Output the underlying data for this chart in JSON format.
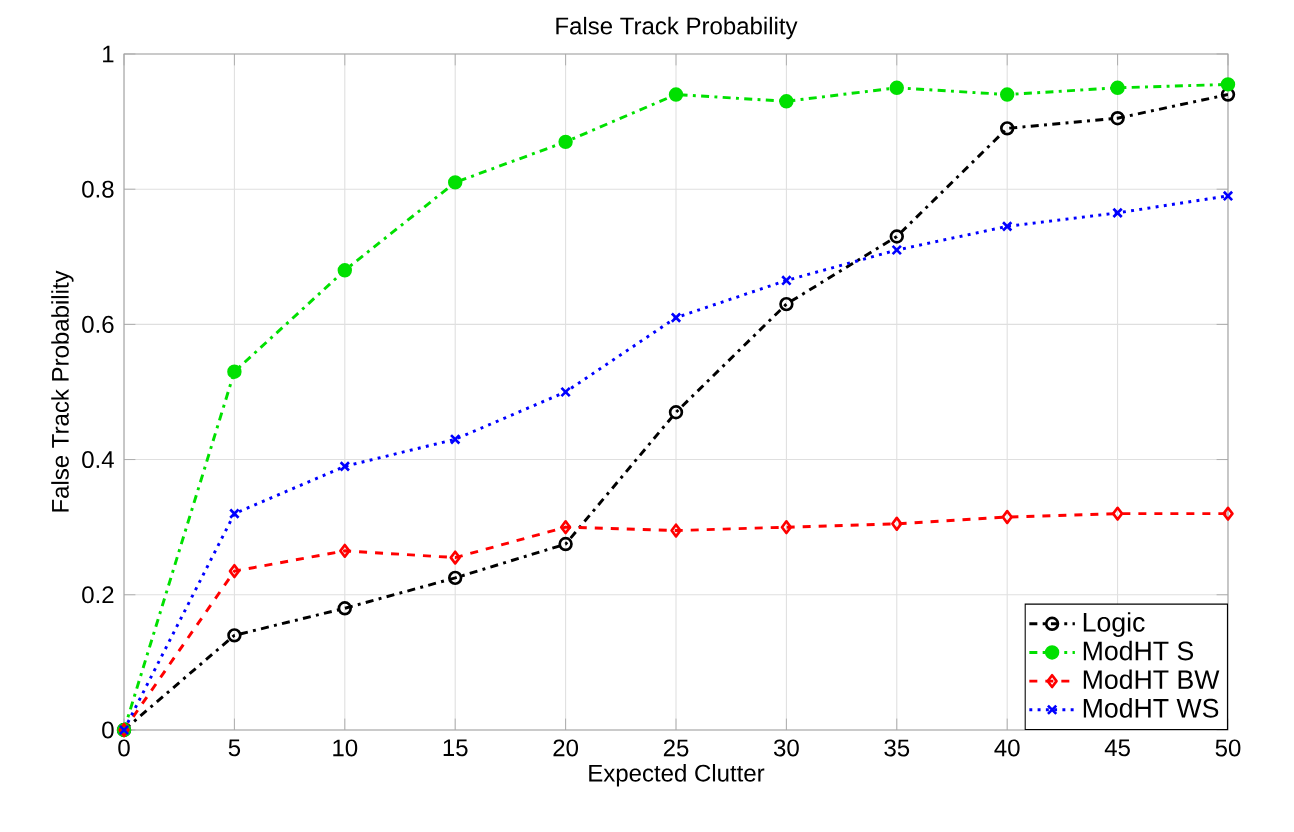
{
  "chart_data": {
    "type": "line",
    "title": "False Track Probability",
    "xlabel": "Expected Clutter",
    "ylabel": "False Track Probability",
    "x": [
      0,
      5,
      10,
      15,
      20,
      25,
      30,
      35,
      40,
      45,
      50
    ],
    "series": [
      {
        "name": "Logic",
        "color": "#000000",
        "marker": "circle",
        "line_style": "dashdot",
        "values": [
          0,
          0.14,
          0.18,
          0.225,
          0.275,
          0.47,
          0.63,
          0.73,
          0.89,
          0.905,
          0.94
        ]
      },
      {
        "name": "ModHT S",
        "color": "#00e000",
        "marker": "dot",
        "line_style": "dashdot",
        "values": [
          0,
          0.53,
          0.68,
          0.81,
          0.87,
          0.94,
          0.93,
          0.95,
          0.94,
          0.95,
          0.955
        ]
      },
      {
        "name": "ModHT BW",
        "color": "#ff0000",
        "marker": "diamond",
        "line_style": "dashed",
        "values": [
          0,
          0.235,
          0.265,
          0.255,
          0.3,
          0.295,
          0.3,
          0.305,
          0.315,
          0.32,
          0.32
        ]
      },
      {
        "name": "ModHT WS",
        "color": "#0000ff",
        "marker": "cross",
        "line_style": "dotted",
        "values": [
          0,
          0.32,
          0.39,
          0.43,
          0.5,
          0.61,
          0.665,
          0.71,
          0.745,
          0.765,
          0.79
        ]
      }
    ],
    "xlim": [
      0,
      50
    ],
    "xticks": [
      0,
      5,
      10,
      15,
      20,
      25,
      30,
      35,
      40,
      45,
      50
    ],
    "ylim": [
      0,
      1
    ],
    "yticks": [
      0,
      0.2,
      0.4,
      0.6,
      0.8,
      1
    ],
    "grid": true,
    "legend": "bottom right"
  }
}
